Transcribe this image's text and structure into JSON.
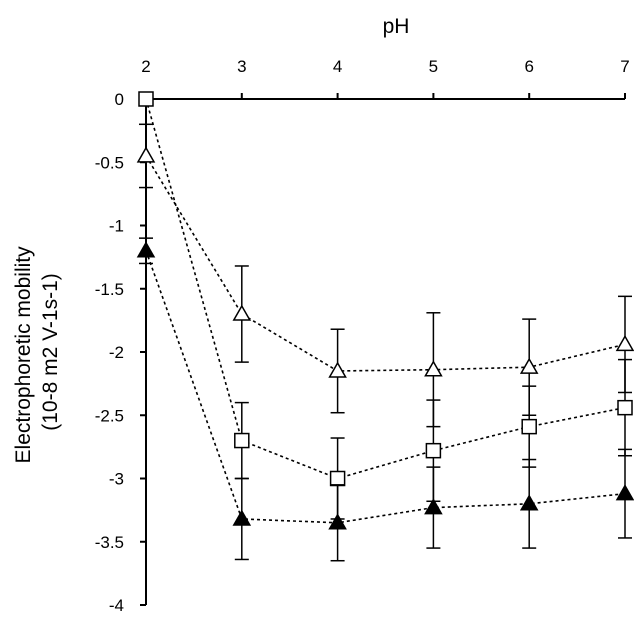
{
  "chart_data": {
    "type": "scatter",
    "xlabel": "pH",
    "ylabel": [
      "Electrophoretic mobility",
      "(10-8 m2 V-1s-1)"
    ],
    "x": [
      2,
      3,
      4,
      5,
      6,
      7
    ],
    "xlim": [
      2,
      7
    ],
    "ylim": [
      -4,
      0
    ],
    "x_axis_position": "top",
    "x_ticks": [
      "2",
      "3",
      "4",
      "5",
      "6",
      "7"
    ],
    "y_ticks": [
      "0",
      "-0.5",
      "-1",
      "-1.5",
      "-2",
      "-2.5",
      "-3",
      "-3.5",
      "-4"
    ],
    "grid": false,
    "legend": "none",
    "line_style": "dotted",
    "series": [
      {
        "marker": "open-triangle",
        "values": [
          -0.45,
          -1.7,
          -2.15,
          -2.14,
          -2.12,
          -1.94
        ],
        "error": [
          0.25,
          0.38,
          0.33,
          0.45,
          0.38,
          0.38
        ]
      },
      {
        "marker": "open-square",
        "values": [
          0,
          -2.7,
          -3.0,
          -2.78,
          -2.59,
          -2.44
        ],
        "error": [
          0.05,
          0.3,
          0.32,
          0.4,
          0.32,
          0.38
        ]
      },
      {
        "marker": "filled-triangle",
        "values": [
          -1.2,
          -3.32,
          -3.35,
          -3.23,
          -3.2,
          -3.12
        ],
        "error": [
          0.1,
          0.32,
          0.3,
          0.32,
          0.35,
          0.35
        ]
      }
    ]
  }
}
